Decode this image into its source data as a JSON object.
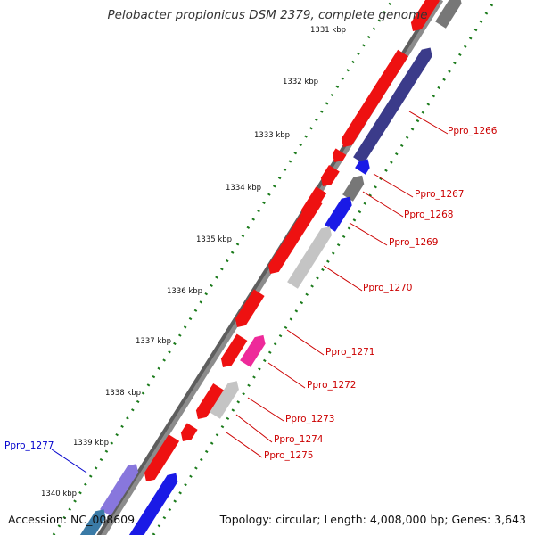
{
  "title": "Pelobacter propionicus DSM 2379, complete genome",
  "footer": {
    "accession_label": "Accession:",
    "accession": "NC_008609",
    "topology_label": "Topology:",
    "topology": "circular",
    "length_label": "Length:",
    "length": "4,008,000 bp",
    "genes_label": "Genes:",
    "genes": "3,643"
  },
  "scale_ticks": [
    "1331 kbp",
    "1332 kbp",
    "1333 kbp",
    "1334 kbp",
    "1335 kbp",
    "1336 kbp",
    "1337 kbp",
    "1338 kbp",
    "1339 kbp",
    "1340 kbp"
  ],
  "gene_labels": [
    {
      "name": "Ppro_1266",
      "color": "#cc0000"
    },
    {
      "name": "Ppro_1267",
      "color": "#cc0000"
    },
    {
      "name": "Ppro_1268",
      "color": "#cc0000"
    },
    {
      "name": "Ppro_1269",
      "color": "#cc0000"
    },
    {
      "name": "Ppro_1270",
      "color": "#cc0000"
    },
    {
      "name": "Ppro_1271",
      "color": "#cc0000"
    },
    {
      "name": "Ppro_1272",
      "color": "#cc0000"
    },
    {
      "name": "Ppro_1273",
      "color": "#cc0000"
    },
    {
      "name": "Ppro_1274",
      "color": "#cc0000"
    },
    {
      "name": "Ppro_1275",
      "color": "#cc0000"
    },
    {
      "name": "Ppro_1277",
      "color": "#0000cc"
    }
  ],
  "colors": {
    "forward_gene": "#ee1111",
    "reverse_gene_navy": "#3b3b8a",
    "reverse_gene_blue": "#1a1ae6",
    "reverse_gene_gray": "#777777",
    "reverse_gene_lightgray": "#c4c4c4",
    "reverse_gene_magenta": "#ee2a9a",
    "reverse_gene_lavender": "#8877dd",
    "backbone": "#8c8c8c",
    "gc_dots": "#1a7a1a"
  }
}
